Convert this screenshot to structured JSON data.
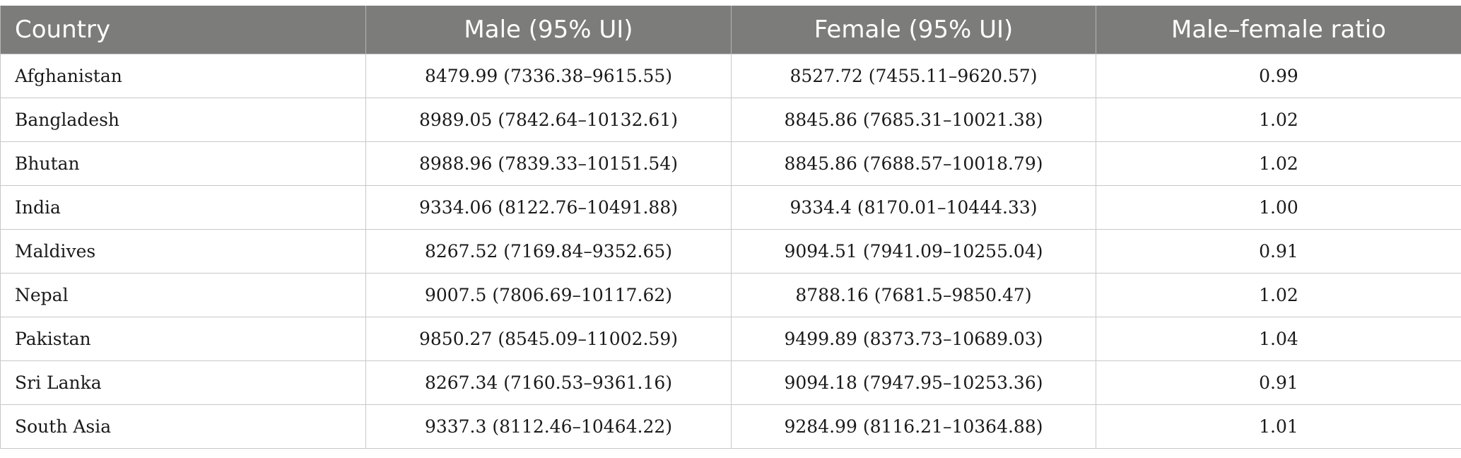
{
  "table": {
    "headers": [
      "Country",
      "Male (95% UI)",
      "Female (95% UI)",
      "Male–female ratio"
    ],
    "rows": [
      [
        "Afghanistan",
        "8479.99 (7336.38–9615.55)",
        "8527.72 (7455.11–9620.57)",
        "0.99"
      ],
      [
        "Bangladesh",
        "8989.05 (7842.64–10132.61)",
        "8845.86 (7685.31–10021.38)",
        "1.02"
      ],
      [
        "Bhutan",
        "8988.96 (7839.33–10151.54)",
        "8845.86 (7688.57–10018.79)",
        "1.02"
      ],
      [
        "India",
        "9334.06 (8122.76–10491.88)",
        "9334.4 (8170.01–10444.33)",
        "1.00"
      ],
      [
        "Maldives",
        "8267.52 (7169.84–9352.65)",
        "9094.51 (7941.09–10255.04)",
        "0.91"
      ],
      [
        "Nepal",
        "9007.5 (7806.69–10117.62)",
        "8788.16 (7681.5–9850.47)",
        "1.02"
      ],
      [
        "Pakistan",
        "9850.27 (8545.09–11002.59)",
        "9499.89 (8373.73–10689.03)",
        "1.04"
      ],
      [
        "Sri Lanka",
        "8267.34 (7160.53–9361.16)",
        "9094.18 (7947.95–10253.36)",
        "0.91"
      ],
      [
        "South Asia",
        "9337.3 (8112.46–10464.22)",
        "9284.99 (8116.21–10364.88)",
        "1.01"
      ]
    ]
  },
  "colors": {
    "header_background": "#7c7c7b",
    "header_text": "#ffffff",
    "grid_lines": "#c8c8c8",
    "body_text": "#1a1a1a"
  }
}
